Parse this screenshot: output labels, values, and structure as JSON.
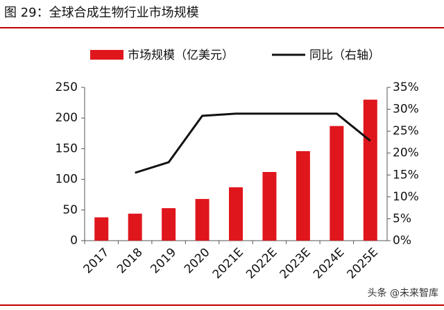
{
  "chart_data": {
    "type": "bar_line",
    "title": "图 29：全球合成生物行业市场规模",
    "categories": [
      "2017",
      "2018",
      "2019",
      "2020",
      "2021E",
      "2022E",
      "2023E",
      "2024E",
      "2025E"
    ],
    "series": [
      {
        "name": "市场规模（亿美元）",
        "type": "bar",
        "color": "#e0161d",
        "values": [
          38,
          44,
          53,
          68,
          87,
          112,
          146,
          187,
          230
        ]
      },
      {
        "name": "同比（右轴）",
        "type": "line",
        "axis": "y2",
        "color": "#111111",
        "values": [
          null,
          15.5,
          17.9,
          28.5,
          29.0,
          29.0,
          29.0,
          29.0,
          22.8
        ]
      }
    ],
    "ylim": [
      0,
      250
    ],
    "yticks": [
      0,
      50,
      100,
      150,
      200,
      250
    ],
    "y2lim": [
      0,
      35
    ],
    "y2ticks": [
      {
        "value": 0,
        "label": "0%"
      },
      {
        "value": 5,
        "label": "5%"
      },
      {
        "value": 10,
        "label": "10%"
      },
      {
        "value": 15,
        "label": "15%"
      },
      {
        "value": 20,
        "label": "20%"
      },
      {
        "value": 25,
        "label": "25%"
      },
      {
        "value": 30,
        "label": "30%"
      },
      {
        "value": 35,
        "label": "35%"
      }
    ],
    "watermark": "头条 @未来智库"
  }
}
